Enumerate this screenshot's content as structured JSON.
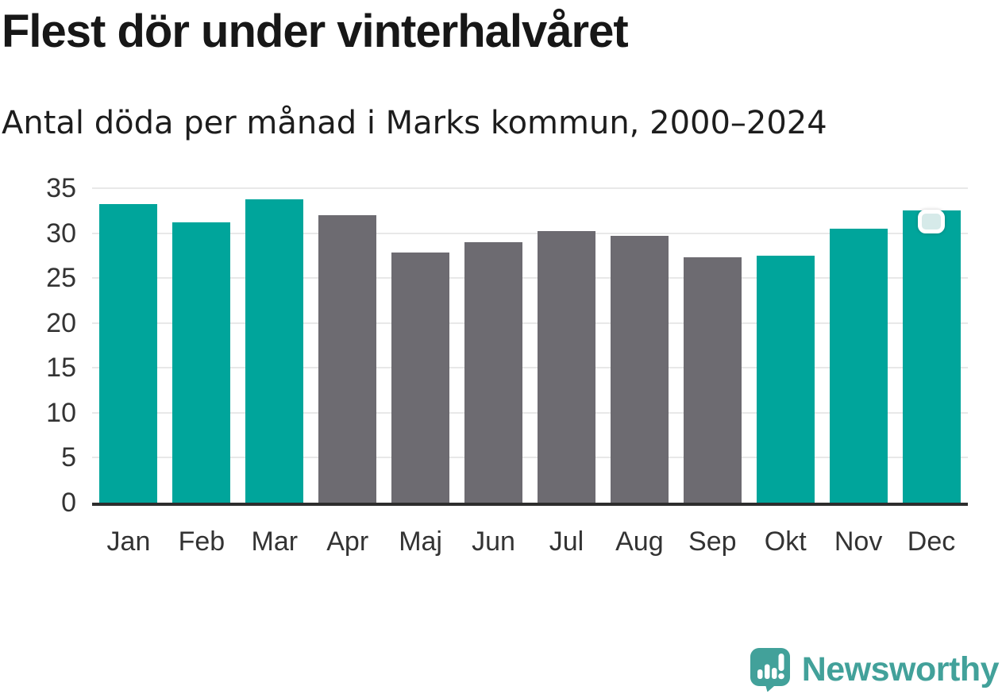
{
  "title": "Flest dör under vinterhalvåret",
  "subtitle": "Antal döda per månad i Marks kommun, 2000–2024",
  "chart_data": {
    "type": "bar",
    "title": "Flest dör under vinterhalvåret",
    "subtitle": "Antal döda per månad i Marks kommun, 2000–2024",
    "categories": [
      "Jan",
      "Feb",
      "Mar",
      "Apr",
      "Maj",
      "Jun",
      "Jul",
      "Aug",
      "Sep",
      "Okt",
      "Nov",
      "Dec"
    ],
    "values": [
      33.2,
      31.2,
      33.8,
      32.0,
      27.8,
      29.0,
      30.2,
      29.7,
      27.3,
      27.5,
      30.5,
      32.5
    ],
    "bar_color_keys": [
      "teal",
      "teal",
      "teal",
      "gray",
      "gray",
      "gray",
      "gray",
      "gray",
      "gray",
      "teal",
      "teal",
      "teal"
    ],
    "colors": {
      "teal": "#00a59b",
      "gray": "#6d6b71"
    },
    "xlabel": "",
    "ylabel": "",
    "ylim": [
      0,
      35
    ],
    "yticks": [
      0,
      5,
      10,
      15,
      20,
      25,
      30,
      35
    ],
    "grid": true,
    "legend": "none"
  },
  "selection_handle": {
    "attached_category": "Dec",
    "fill": "#d6eae9",
    "border": "#ffffff"
  },
  "branding": {
    "logo_text": "Newsworthy",
    "logo_color": "#42a19a",
    "logo_icon": "speech-bubble-bar-chart-exclamation"
  }
}
